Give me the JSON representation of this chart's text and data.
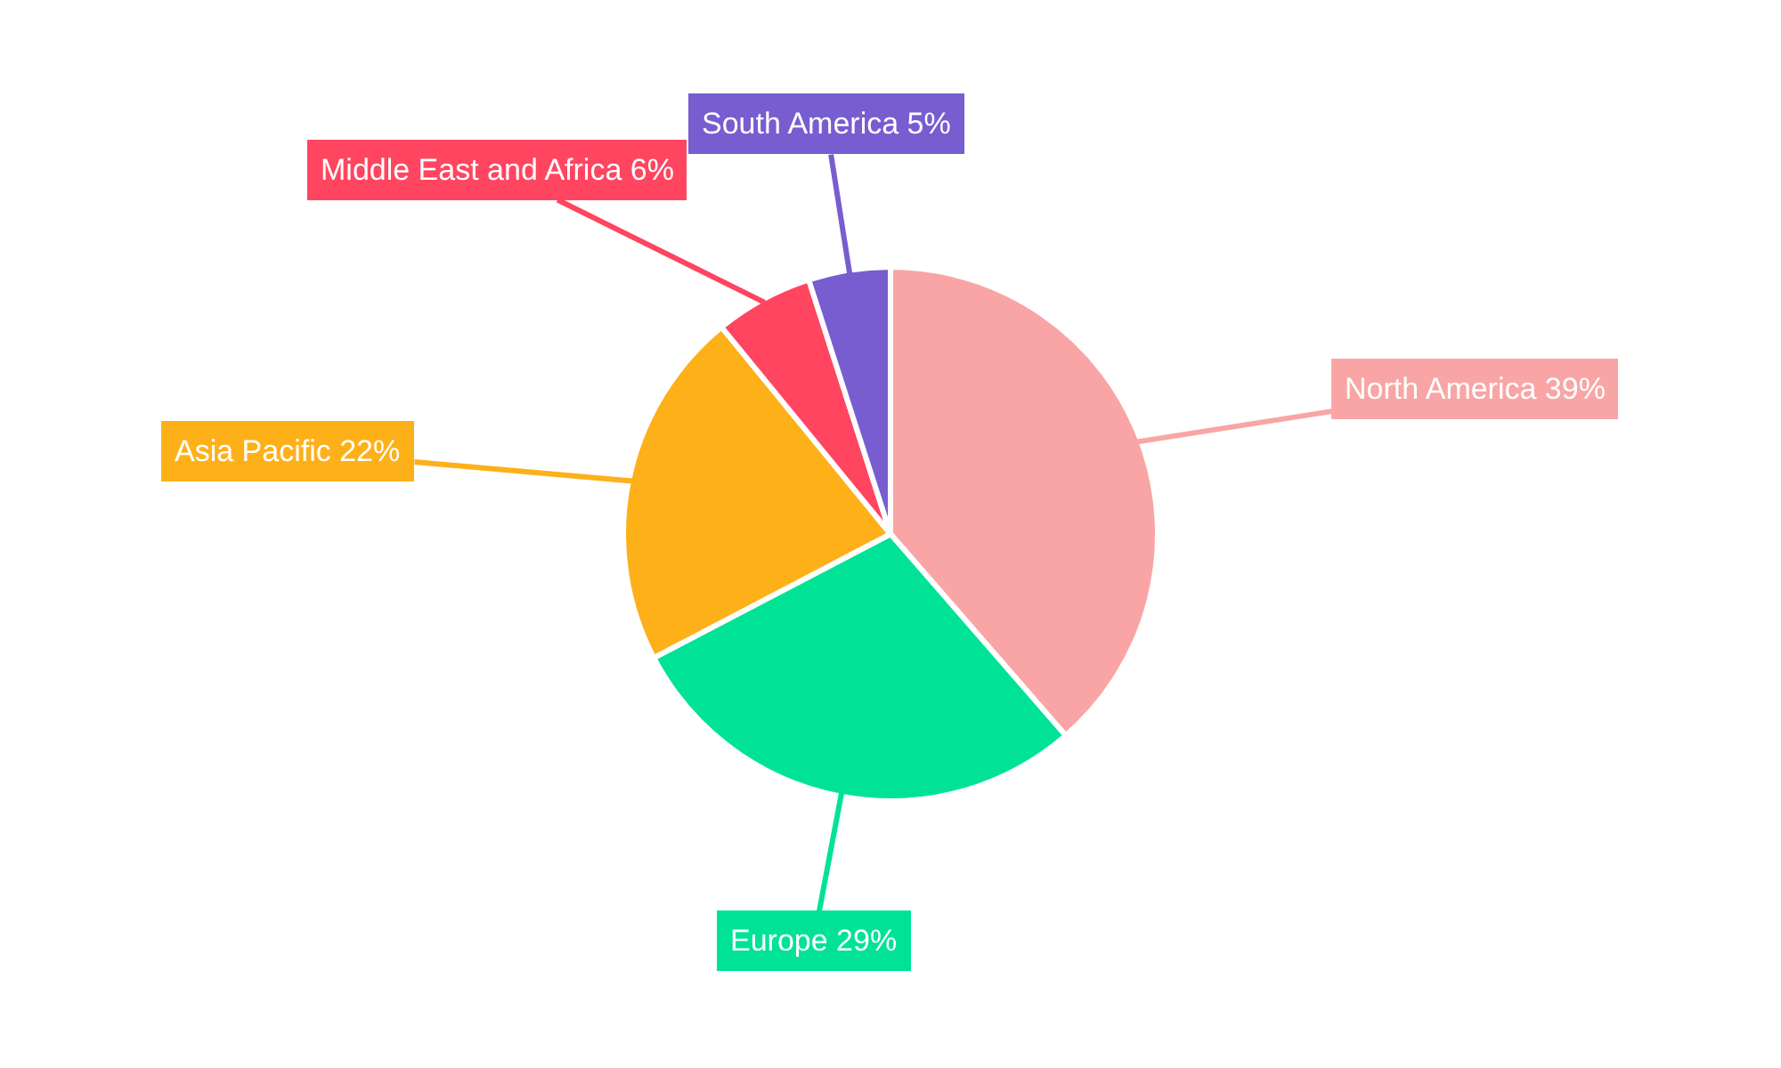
{
  "chart_data": {
    "type": "pie",
    "categories": [
      "North America",
      "Europe",
      "Asia Pacific",
      "Middle East and Africa",
      "South America"
    ],
    "values": [
      39,
      29,
      22,
      6,
      5
    ],
    "value_labels": [
      "39%",
      "29%",
      "22%",
      "6%",
      "5%"
    ],
    "colors": [
      "#f9a5a5",
      "#00e396",
      "#feb019",
      "#ff4560",
      "#775dd0"
    ],
    "legend": false
  }
}
